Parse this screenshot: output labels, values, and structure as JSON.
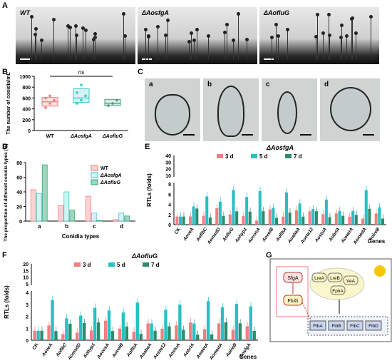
{
  "panels": {
    "A": {
      "letter": "A",
      "images": [
        "WT",
        "ΔAosfgA",
        "ΔAofluG"
      ]
    },
    "B": {
      "letter": "B",
      "ylabel": "The number of conidia/mL",
      "ns": "ns",
      "chart_data": {
        "type": "box",
        "categories": [
          "WT",
          "ΔAosfgA",
          "ΔAofluG"
        ],
        "medians": [
          530,
          600,
          500
        ],
        "q1": [
          450,
          520,
          460
        ],
        "q3": [
          610,
          770,
          575
        ],
        "points": [
          [
            420,
            500,
            560,
            600,
            640
          ],
          [
            500,
            560,
            640,
            700,
            840
          ],
          [
            460,
            500,
            560
          ]
        ],
        "colors": [
          "#f47d80",
          "#3fc6c8",
          "#3aa57a"
        ],
        "fills": [
          "#fde0e1",
          "#d6f2f3",
          "#d3eee2"
        ],
        "yticks": [
          0,
          200,
          400,
          600,
          800,
          1000
        ],
        "ylim": [
          0,
          1000
        ]
      }
    },
    "C": {
      "letter": "C",
      "cells": [
        "a",
        "b",
        "c",
        "d"
      ]
    },
    "D": {
      "letter": "D",
      "ylabel": "The proportion of different conidia types (%)",
      "xlabel": "Conidia types",
      "chart_data": {
        "type": "bar",
        "categories": [
          "a",
          "b",
          "c",
          "d"
        ],
        "series": [
          {
            "name": "WT",
            "values": [
              43,
              21,
              34,
              2
            ],
            "fill": "#fbd3d4",
            "stroke": "#f47d80"
          },
          {
            "name": "ΔAosfgA",
            "values": [
              38,
              40,
              11,
              11
            ],
            "fill": "#d6f2f3",
            "stroke": "#3fc6c8"
          },
          {
            "name": "ΔAofluG",
            "values": [
              77,
              15,
              1,
              7
            ],
            "fill": "#9fd6bd",
            "stroke": "#3aa57a"
          }
        ],
        "yticks": [
          0,
          20,
          40,
          60,
          80
        ],
        "ylim": [
          0,
          80
        ]
      }
    },
    "E": {
      "letter": "E",
      "title": "ΔAosfgA",
      "ylabel": "RTLs (folds)",
      "xlabel": "Genes",
      "legend": [
        "3 d",
        "5 d",
        "7 d"
      ],
      "yticks_top": [
        "40",
        "30",
        "20",
        "10"
      ],
      "yticks_bottom": [
        "8",
        "6",
        "4",
        "2",
        "0"
      ],
      "genes": [
        "CK",
        "AoveA",
        "AoflbC",
        "AomsdD",
        "AofluG",
        "Aohyp1",
        "AovosA",
        "AovelB",
        "AoflbA",
        "AoabaA",
        "Aoste12",
        "AostuA",
        "AobrlA",
        "AowetA",
        "AomedA",
        "AolreB"
      ]
    },
    "F": {
      "letter": "F",
      "title": "ΔAofluG",
      "ylabel": "RTLs (folds)",
      "xlabel": "Genes",
      "legend": [
        "3 d",
        "5 d",
        "7 d"
      ],
      "yticks_top": [
        "20",
        "15",
        "10",
        "5"
      ],
      "yticks_bottom": [
        "4",
        "3",
        "2",
        "1",
        "0"
      ],
      "genes": [
        "CK",
        "AoveA",
        "AoflbC",
        "AomsdD",
        "Aohyp1",
        "AovosA",
        "AovelB",
        "AoflbA",
        "AoabaA",
        "Aoste12",
        "AostuA",
        "AobrlA",
        "AowetA",
        "AomedA",
        "AolreB",
        "AosfgA"
      ]
    },
    "G": {
      "letter": "G",
      "nodes": {
        "sfga": "SfgA",
        "fluG": "FluG",
        "lrea": "LreA",
        "lreb": "LreB",
        "vea": "VeA",
        "fpha": "FphA",
        "flba": "FlbA",
        "flbb": "FlbB",
        "flbc": "FlbC",
        "flbd": "FlbD"
      }
    }
  },
  "colors": {
    "d3": "#f47d80",
    "d5": "#27c0c4",
    "d7": "#2e8b6e"
  }
}
